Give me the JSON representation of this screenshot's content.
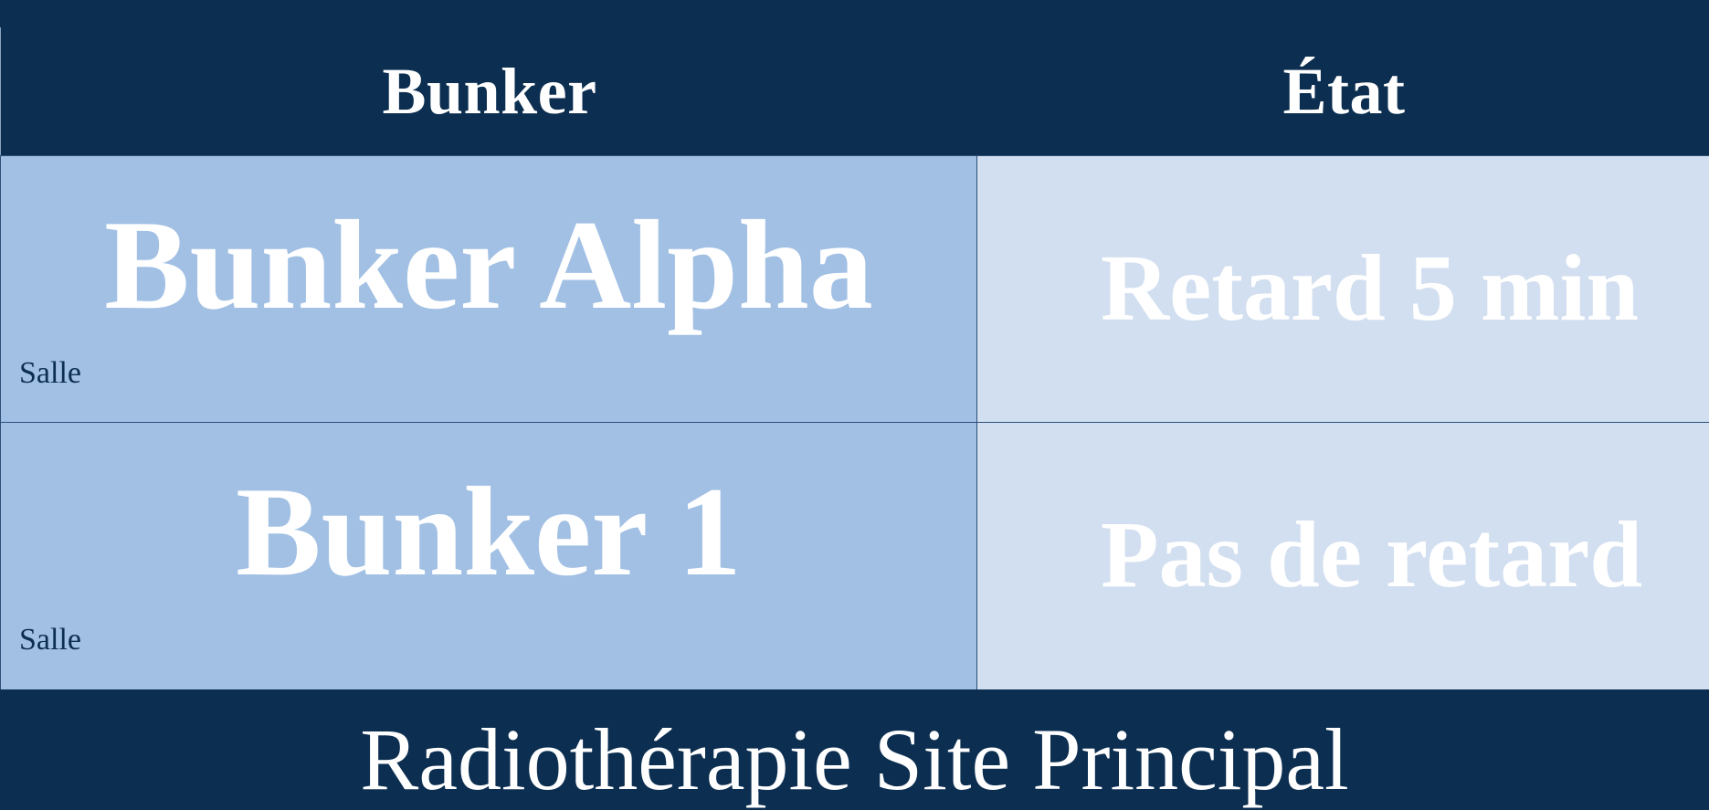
{
  "colors": {
    "background": "#0c2e50",
    "room_cell": "#a2c0e4",
    "state_cell": "#d2dff0",
    "text_light": "#ffffff",
    "text_dark": "#0c2e50"
  },
  "table": {
    "headers": {
      "bunker": "Bunker",
      "state": "État"
    },
    "rows": [
      {
        "room": "Bunker Alpha",
        "caption": "Salle",
        "state": "Retard 5 min"
      },
      {
        "room": "Bunker 1",
        "caption": "Salle",
        "state": "Pas de retard"
      }
    ]
  },
  "footer": {
    "site_name": "Radiothérapie Site Principal"
  }
}
